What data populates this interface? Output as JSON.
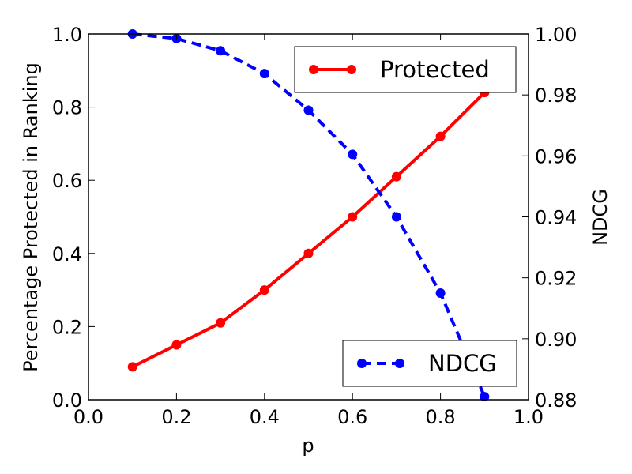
{
  "chart_data": {
    "type": "line",
    "title": "",
    "xlabel": "p",
    "ylabel_left": "Percentage Protected in Ranking",
    "ylabel_right": "NDCG",
    "xlim": [
      0.0,
      1.0
    ],
    "ylim_left": [
      0.0,
      1.0
    ],
    "ylim_right": [
      0.88,
      1.0
    ],
    "x_ticks": [
      "0.0",
      "0.2",
      "0.4",
      "0.6",
      "0.8",
      "1.0"
    ],
    "y_left_ticks": [
      "0.0",
      "0.2",
      "0.4",
      "0.6",
      "0.8",
      "1.0"
    ],
    "y_right_ticks": [
      "0.88",
      "0.90",
      "0.92",
      "0.94",
      "0.96",
      "0.98",
      "1.00"
    ],
    "grid": false,
    "x": [
      0.1,
      0.2,
      0.3,
      0.4,
      0.5,
      0.6,
      0.7,
      0.8,
      0.9
    ],
    "series": [
      {
        "name": "Protected",
        "axis": "left",
        "color": "#ff0000",
        "style": "solid",
        "legend_position": "top-right",
        "values": [
          0.09,
          0.15,
          0.21,
          0.3,
          0.4,
          0.5,
          0.61,
          0.72,
          0.84
        ]
      },
      {
        "name": "NDCG",
        "axis": "right",
        "color": "#0000ff",
        "style": "dashed",
        "legend_position": "bottom-right",
        "values": [
          1.0,
          0.9985,
          0.9945,
          0.987,
          0.975,
          0.9605,
          0.94,
          0.915,
          0.881
        ]
      }
    ]
  }
}
